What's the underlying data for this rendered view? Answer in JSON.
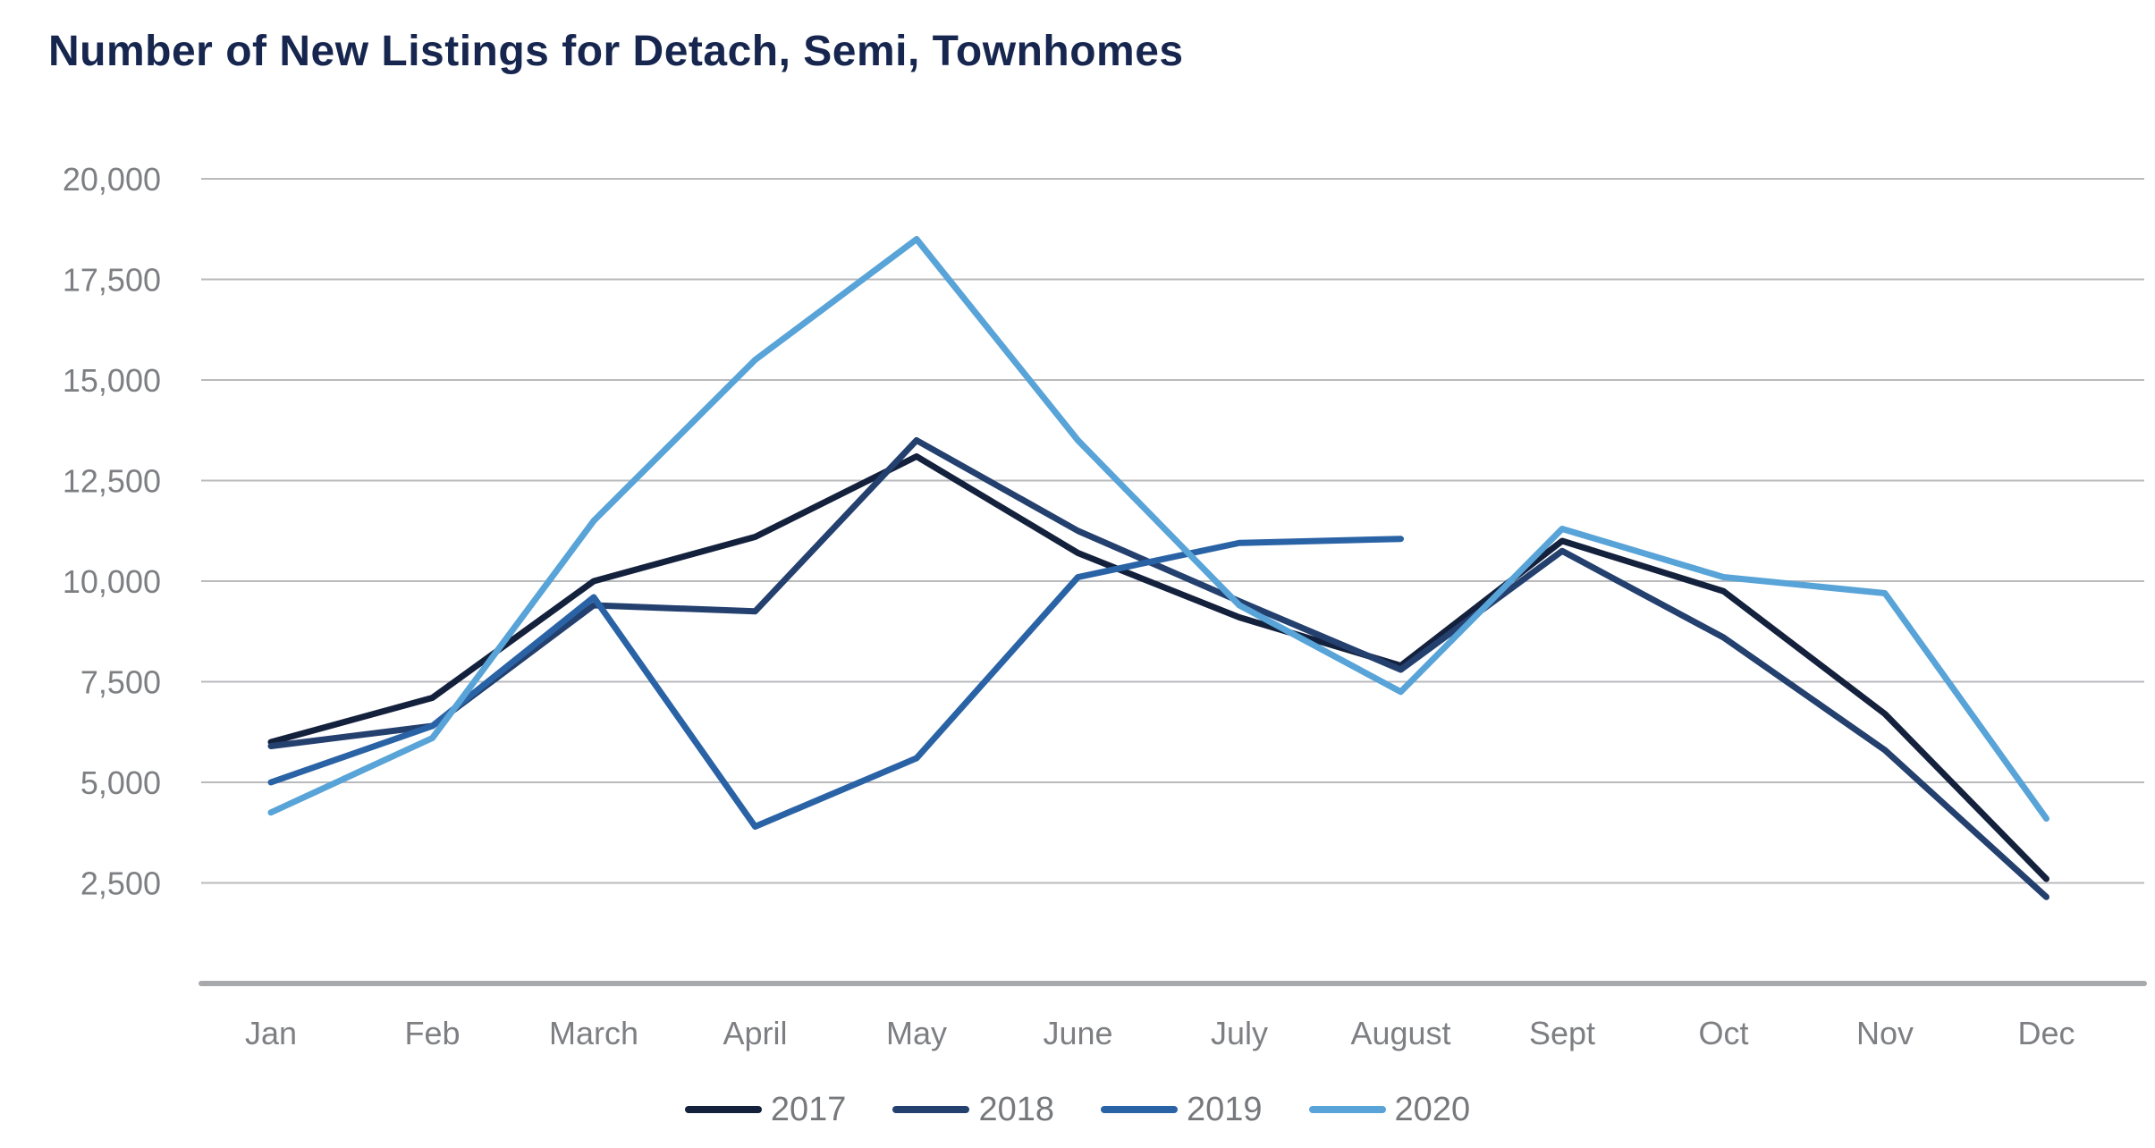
{
  "chart": {
    "title": "Number of New Listings for Detach, Semi, Townhomes"
  },
  "chart_data": {
    "type": "line",
    "title": "Number of New Listings for Detach, Semi, Townhomes",
    "categories": [
      "Jan",
      "Feb",
      "March",
      "April",
      "May",
      "June",
      "July",
      "August",
      "Sept",
      "Oct",
      "Nov",
      "Dec"
    ],
    "y_ticks": [
      {
        "value": 2500,
        "label": "2,500"
      },
      {
        "value": 5000,
        "label": "5,000"
      },
      {
        "value": 7500,
        "label": "7,500"
      },
      {
        "value": 10000,
        "label": "10,000"
      },
      {
        "value": 12500,
        "label": "12,500"
      },
      {
        "value": 15000,
        "label": "15,000"
      },
      {
        "value": 17500,
        "label": "17,500"
      },
      {
        "value": 20000,
        "label": "20,000"
      }
    ],
    "ylim": [
      0,
      20000
    ],
    "grid": true,
    "legend_position": "bottom",
    "series": [
      {
        "name": "2017",
        "color": "#14213d",
        "values": [
          6000,
          7100,
          10000,
          11100,
          13100,
          10700,
          9100,
          7900,
          11000,
          9750,
          6700,
          2600
        ]
      },
      {
        "name": "2018",
        "color": "#24406e",
        "values": [
          5900,
          6400,
          9400,
          9250,
          13500,
          11250,
          9500,
          7800,
          10750,
          8600,
          5800,
          2150
        ]
      },
      {
        "name": "2019",
        "color": "#2a63a5",
        "values": [
          5000,
          6400,
          9600,
          3900,
          5600,
          10100,
          10950,
          11050,
          null,
          null,
          null,
          null
        ]
      },
      {
        "name": "2020",
        "color": "#58a3d7",
        "values": [
          4250,
          6100,
          11500,
          15500,
          18500,
          13500,
          9400,
          7250,
          11300,
          10100,
          9700,
          4100
        ]
      }
    ],
    "colors": {
      "title_text": "#17264e",
      "tick_text": "#7d7f83",
      "legend_text": "#77787b",
      "gridline": "#b9babc",
      "axis_line": "#a7a9ac",
      "background": "#ffffff"
    }
  }
}
